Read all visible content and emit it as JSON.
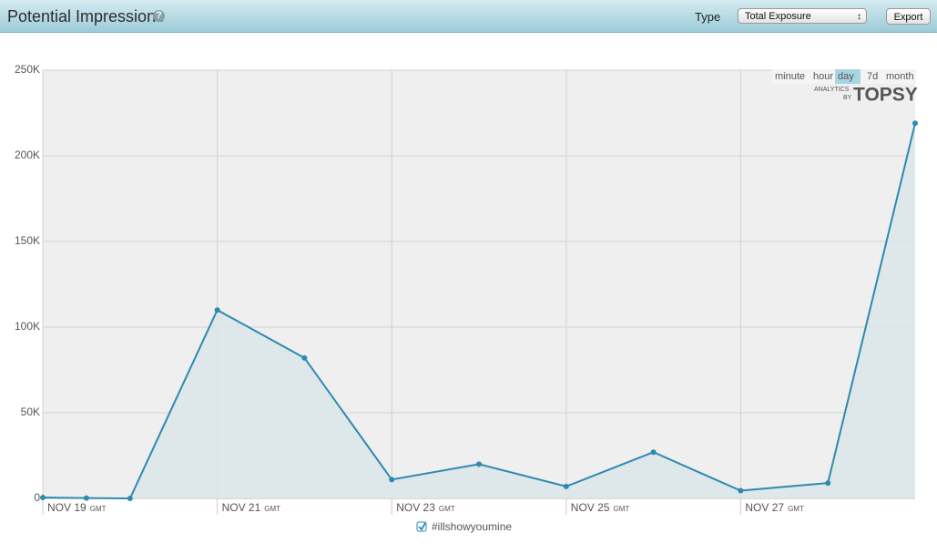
{
  "header": {
    "title": "Potential Impressions",
    "help_icon": "?",
    "type_label": "Type",
    "type_select": "Total Exposure",
    "export_button": "Export"
  },
  "chart_data": {
    "type": "line",
    "x_unit": "GMT",
    "x": [
      19,
      19.5,
      20,
      21,
      22,
      23,
      24,
      25,
      26,
      27,
      28,
      29
    ],
    "series": [
      {
        "name": "#illshowyoumine",
        "color": "#2d8ab0",
        "values": [
          500,
          200,
          0,
          110000,
          82000,
          11000,
          20000,
          7000,
          27000,
          4500,
          9000,
          219000
        ]
      }
    ],
    "xlim": [
      19,
      29
    ],
    "xticks": [
      {
        "value": 19,
        "label": "NOV 19"
      },
      {
        "value": 21,
        "label": "NOV 21"
      },
      {
        "value": 23,
        "label": "NOV 23"
      },
      {
        "value": 25,
        "label": "NOV 25"
      },
      {
        "value": 27,
        "label": "NOV 27"
      }
    ],
    "ylim": [
      0,
      250000
    ],
    "yticks": [
      0,
      {
        "value": 50000,
        "label": "50K"
      },
      {
        "value": 100000,
        "label": "100K"
      },
      {
        "value": 150000,
        "label": "150K"
      },
      {
        "value": 200000,
        "label": "200K"
      },
      {
        "value": 250000,
        "label": "250K"
      }
    ],
    "grid": true,
    "range_options": [
      "minute",
      "hour",
      "day",
      "7d",
      "month"
    ],
    "range_selected": "day",
    "brand_small": "ANALYTICS",
    "brand_by": "BY",
    "brand_name": "TOPSY"
  }
}
